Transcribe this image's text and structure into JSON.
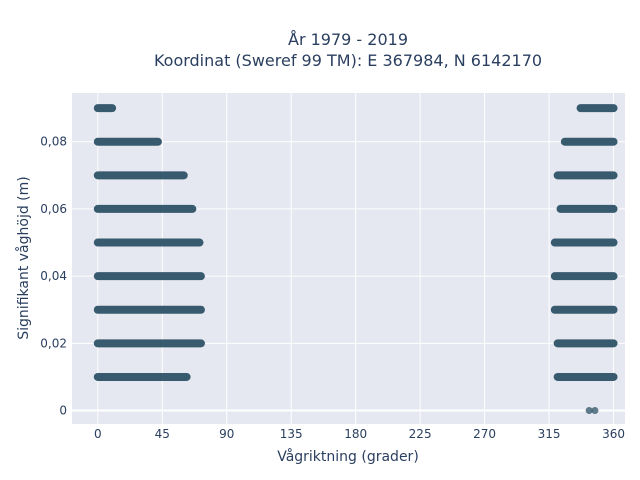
{
  "chart_data": {
    "type": "scatter",
    "title": "År 1979 - 2019",
    "subtitle": "Koordinat (Sweref 99 TM): E 367984, N 6142170",
    "xlabel": "Vågriktning (grader)",
    "ylabel": "Signifikant våghöjd (m)",
    "xlim": [
      -18,
      368
    ],
    "ylim": [
      -0.004,
      0.0945
    ],
    "xticks": [
      0,
      45,
      90,
      135,
      180,
      225,
      270,
      315,
      360
    ],
    "xtick_labels": [
      "0",
      "45",
      "90",
      "135",
      "180",
      "225",
      "270",
      "315",
      "360"
    ],
    "yticks": [
      0,
      0.02,
      0.04,
      0.06,
      0.08
    ],
    "ytick_labels": [
      "0",
      "0,02",
      "0,04",
      "0,06",
      "0,08"
    ],
    "grid": true,
    "legend": "none",
    "marker_color": "#2e5266",
    "plot_bg": "#e5e8f0",
    "bands": [
      {
        "y": 0.0,
        "segments": [
          [
            343,
            347
          ]
        ]
      },
      {
        "y": 0.01,
        "segments": [
          [
            0,
            62
          ],
          [
            321,
            360
          ]
        ]
      },
      {
        "y": 0.02,
        "segments": [
          [
            0,
            72
          ],
          [
            321,
            360
          ]
        ]
      },
      {
        "y": 0.03,
        "segments": [
          [
            0,
            72
          ],
          [
            319,
            360
          ]
        ]
      },
      {
        "y": 0.04,
        "segments": [
          [
            0,
            72
          ],
          [
            319,
            360
          ]
        ]
      },
      {
        "y": 0.05,
        "segments": [
          [
            0,
            71
          ],
          [
            319,
            360
          ]
        ]
      },
      {
        "y": 0.06,
        "segments": [
          [
            0,
            66
          ],
          [
            323,
            360
          ]
        ]
      },
      {
        "y": 0.07,
        "segments": [
          [
            0,
            60
          ],
          [
            321,
            360
          ]
        ]
      },
      {
        "y": 0.08,
        "segments": [
          [
            0,
            42
          ],
          [
            326,
            360
          ]
        ]
      },
      {
        "y": 0.09,
        "segments": [
          [
            0,
            10
          ],
          [
            337,
            360
          ]
        ]
      }
    ]
  }
}
